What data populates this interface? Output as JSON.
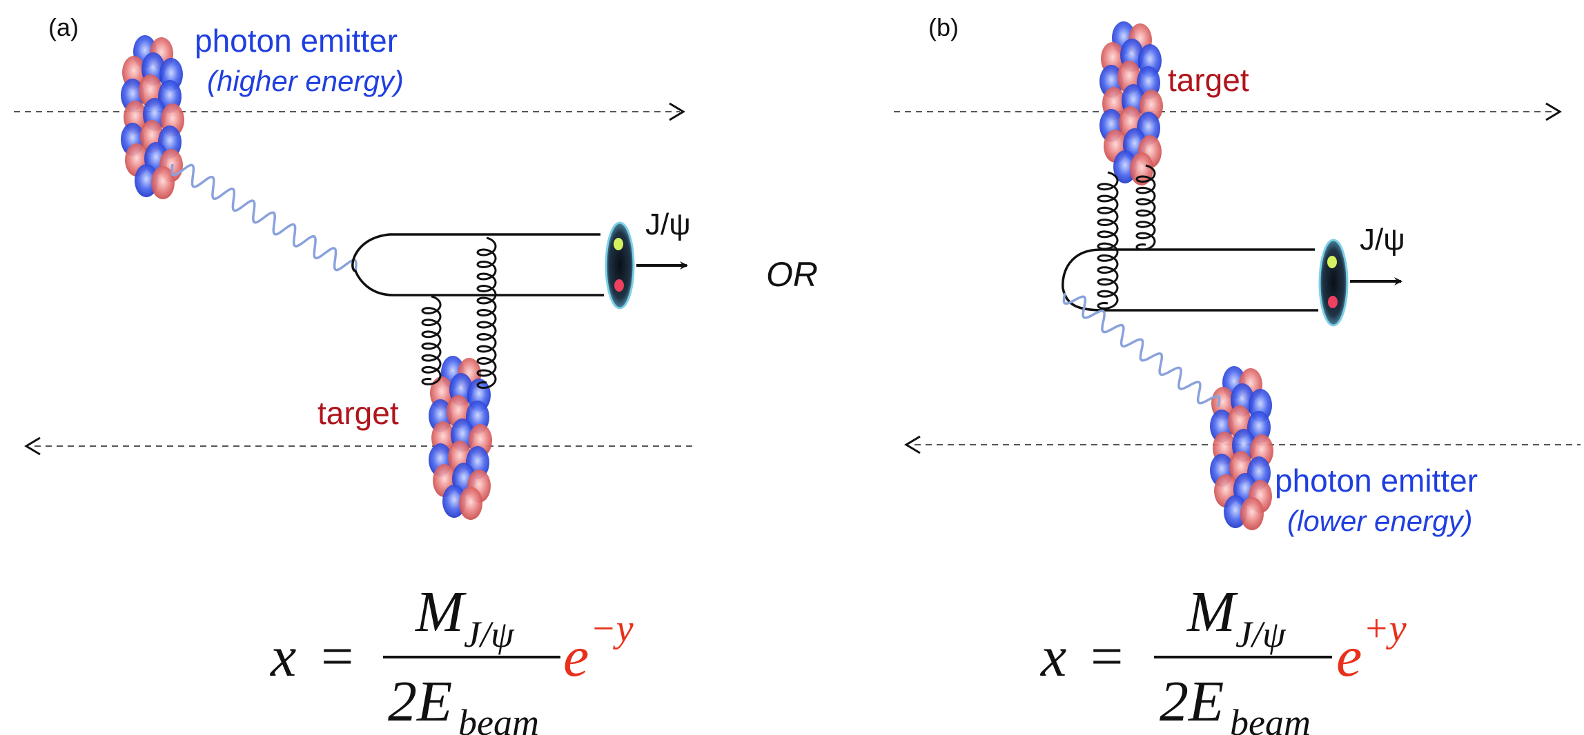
{
  "panels": {
    "a": {
      "label": "(a)",
      "emitter_title": "photon emitter",
      "emitter_note": "(higher energy)",
      "target_label": "target",
      "meson_label": "J/ψ",
      "formula": {
        "lhs": "x",
        "eq": "=",
        "num_main": "M",
        "num_sub": "J/ψ",
        "den_main": "2E",
        "den_sub": "beam",
        "exp_base": "e",
        "exp_power": "−y"
      }
    },
    "b": {
      "label": "(b)",
      "emitter_title": "photon emitter",
      "emitter_note": "(lower energy)",
      "target_label": "target",
      "meson_label": "J/ψ",
      "formula": {
        "lhs": "x",
        "eq": "=",
        "num_main": "M",
        "num_sub": "J/ψ",
        "den_main": "2E",
        "den_sub": "beam",
        "exp_base": "e",
        "exp_power": "+y"
      }
    }
  },
  "separator_text": "OR",
  "colors": {
    "emitter_text": "#1f3fe0",
    "target_text": "#b0141c",
    "exponent": "#e8301c",
    "photon_wave": "#8aa2dc",
    "nucleon_red": "#e07070",
    "nucleon_blue": "#3050e0",
    "ink": "#111111"
  }
}
